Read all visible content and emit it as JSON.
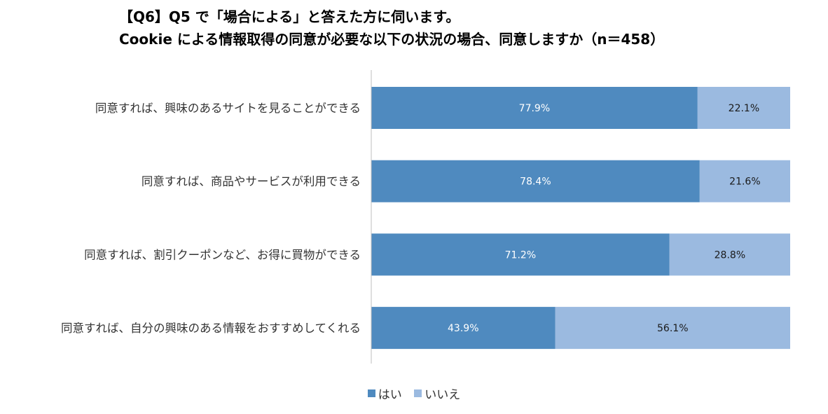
{
  "title_line1": "【Q6】Q5 で「場合による」と答えた方に伺います。",
  "title_line2": "Cookie による情報取得の同意が必要な以下の状況の場合、同意しますか（n＝458）",
  "chart_data": {
    "type": "bar",
    "orientation": "horizontal",
    "stacked": true,
    "stacked_percent": true,
    "categories": [
      "同意すれば、興味のあるサイトを見ることができる",
      "同意すれば、商品やサービスが利用できる",
      "同意すれば、割引クーポンなど、お得に買物ができる",
      "同意すれば、自分の興味のある情報をおすすめしてくれる"
    ],
    "series": [
      {
        "name": "はい",
        "values": [
          77.9,
          78.4,
          71.2,
          43.9
        ],
        "color": "#4f8abf"
      },
      {
        "name": "いいえ",
        "values": [
          22.1,
          21.6,
          28.8,
          56.1
        ],
        "color": "#9bbae0"
      }
    ],
    "value_format": "%",
    "xlim": [
      0,
      100
    ],
    "grid": false,
    "legend": "bottom"
  }
}
